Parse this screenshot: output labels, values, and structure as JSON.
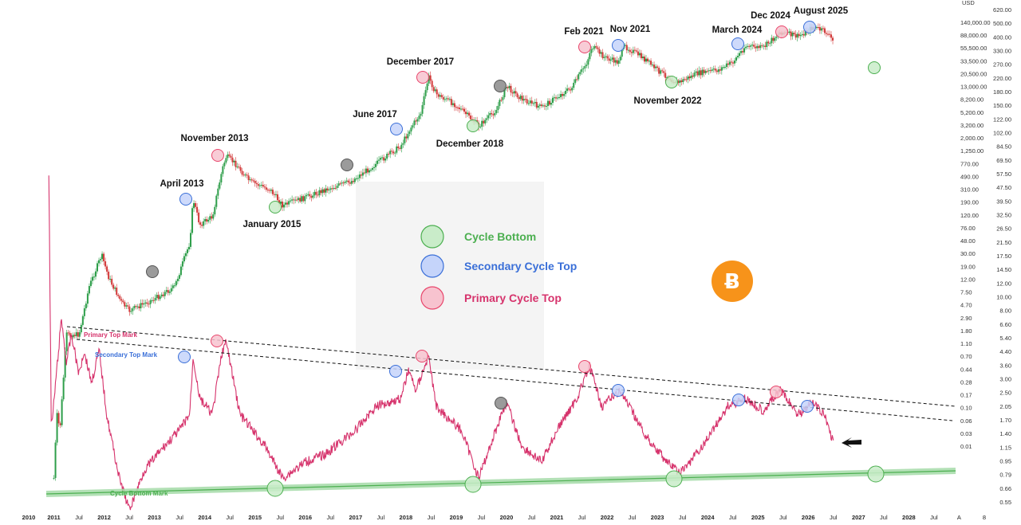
{
  "chart_data": {
    "type": "line",
    "title": "",
    "xlabel": "",
    "ylabel": "",
    "xlim": [
      2010.0,
      2028.5
    ],
    "x_ticks": [
      "2010",
      "2011",
      "Jul",
      "2012",
      "Jul",
      "2013",
      "Jul",
      "2014",
      "Jul",
      "2015",
      "Jul",
      "2016",
      "Jul",
      "2017",
      "Jul",
      "2018",
      "Jul",
      "2019",
      "Jul",
      "2020",
      "Jul",
      "2021",
      "Jul",
      "2022",
      "Jul",
      "2023",
      "Jul",
      "2024",
      "Jul",
      "2025",
      "Jul",
      "2026",
      "Jul",
      "2027",
      "Jul",
      "2028",
      "Jul",
      "A",
      "8"
    ],
    "price_axis": {
      "currency": "USD",
      "labels": [
        "140,000.00",
        "88,000.00",
        "55,500.00",
        "33,500.00",
        "20,500.00",
        "13,000.00",
        "8,200.00",
        "5,200.00",
        "3,200.00",
        "2,000.00",
        "1,250.00",
        "770.00",
        "490.00",
        "310.00",
        "190.00",
        "120.00",
        "76.00",
        "48.00",
        "30.00",
        "19.00",
        "12.00",
        "7.50",
        "4.70",
        "2.90",
        "1.80",
        "1.10",
        "0.70",
        "0.44",
        "0.28",
        "0.17",
        "0.10",
        "0.06",
        "0.03",
        "0.01"
      ]
    },
    "ratio_axis": {
      "labels": [
        "620.00",
        "500.00",
        "400.00",
        "330.00",
        "270.00",
        "220.00",
        "180.00",
        "150.00",
        "122.00",
        "102.00",
        "84.50",
        "69.50",
        "57.50",
        "47.50",
        "39.50",
        "32.50",
        "26.50",
        "21.50",
        "17.50",
        "14.50",
        "12.00",
        "10.00",
        "8.00",
        "6.60",
        "5.40",
        "4.40",
        "3.60",
        "3.00",
        "2.50",
        "2.05",
        "1.70",
        "1.40",
        "1.15",
        "0.95",
        "0.79",
        "0.66",
        "0.55"
      ]
    },
    "series": [
      {
        "type": "candlestick",
        "color_up": "#2e9e4a",
        "color_down": "#d23a3a"
      },
      {
        "type": "line",
        "color": "#d6336c"
      }
    ],
    "cycle_labels": [
      "April 2013",
      "November 2013",
      "January 2015",
      "June 2017",
      "December 2017",
      "December 2018",
      "Feb 2021",
      "Nov 2021",
      "November 2022",
      "March 2024",
      "Dec 2024",
      "August 2025"
    ],
    "legend": {
      "items": [
        {
          "label": "Cycle Bottom",
          "color": "#4caf50"
        },
        {
          "label": "Secondary Cycle Top",
          "color": "#3a6fd8"
        },
        {
          "label": "Primary Cycle Top",
          "color": "#d6336c"
        }
      ]
    },
    "trendline_labels": {
      "primary": "Primary Top Mark",
      "secondary": "Secondary Top Mark",
      "bottom": "Cycle Bottom Mark"
    },
    "grid": false
  },
  "colors": {
    "green": "#4caf50",
    "blue": "#3a6fd8",
    "red": "#e8456b",
    "gray": "#777777",
    "ratio_line": "#d6336c",
    "bitcoin": "#f7931a"
  },
  "icons": {
    "bitcoin": "bitcoin-logo-icon"
  }
}
